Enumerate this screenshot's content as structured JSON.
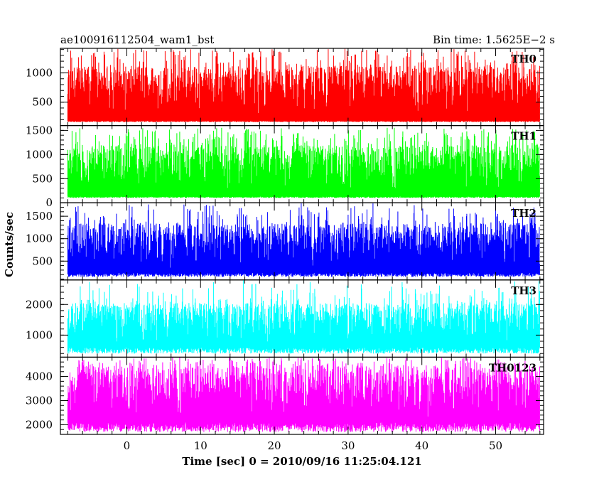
{
  "header": {
    "left_title": "ae100916112504_wam1_bst",
    "right_title": "Bin time: 1.5625E−2 s"
  },
  "axes": {
    "xlabel": "Time [sec] 0 = 2010/09/16 11:25:04.121",
    "ylabel": "Counts/sec"
  },
  "chart_data": {
    "type": "line",
    "title": "ae100916112504_wam1_bst",
    "subtitle": "Bin time: 1.5625E−2 s",
    "xlabel": "Time [sec] 0 = 2010/09/16 11:25:04.121",
    "ylabel": "Counts/sec",
    "xlim": [
      -9,
      56.5
    ],
    "data_x_range": [
      -8,
      56
    ],
    "x_ticks": [
      0,
      10,
      20,
      30,
      40,
      50
    ],
    "bin_time_s": 0.015625,
    "legend": "none",
    "panels": [
      {
        "name": "TH0",
        "color": "#ff0000",
        "ylim": [
          100,
          1420
        ],
        "y_ticks": [
          500,
          1000
        ],
        "y_base": 160,
        "noise_low": 180,
        "noise_high": 1120,
        "spike_max": 1420
      },
      {
        "name": "TH1",
        "color": "#00ff00",
        "ylim": [
          0,
          1600
        ],
        "y_ticks": [
          0,
          500,
          1000,
          1500
        ],
        "y_base": 100,
        "noise_low": 130,
        "noise_high": 1200,
        "spike_max": 1560
      },
      {
        "name": "TH2",
        "color": "#0000ff",
        "ylim": [
          80,
          1800
        ],
        "y_ticks": [
          500,
          1000,
          1500
        ],
        "y_base": 150,
        "noise_low": 240,
        "noise_high": 1350,
        "spike_max": 1800
      },
      {
        "name": "TH3",
        "color": "#00ffff",
        "ylim": [
          280,
          2800
        ],
        "y_ticks": [
          1000,
          2000
        ],
        "y_base": 400,
        "noise_low": 600,
        "noise_high": 2050,
        "spike_max": 2800
      },
      {
        "name": "TH0123",
        "color": "#ff00ff",
        "ylim": [
          1600,
          4800
        ],
        "y_ticks": [
          2000,
          3000,
          4000
        ],
        "y_base": 1700,
        "noise_low": 2100,
        "noise_high": 4450,
        "spike_max": 4800
      }
    ]
  }
}
